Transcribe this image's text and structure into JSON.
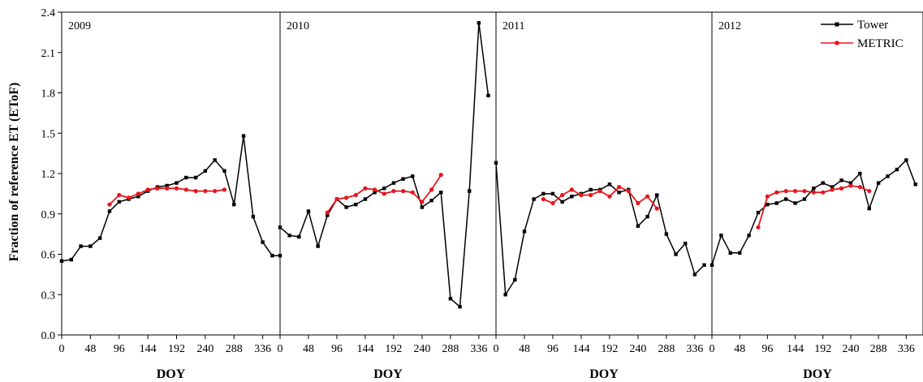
{
  "chart_data": {
    "type": "line",
    "ylabel": "Fraction of reference ET (EToF)",
    "ylim": [
      0,
      2.4
    ],
    "yticks": [
      "0.0",
      "0.3",
      "0.6",
      "0.9",
      "1.2",
      "1.5",
      "1.8",
      "2.1",
      "2.4"
    ],
    "xlim": [
      0,
      365
    ],
    "xticks": [
      "0",
      "48",
      "96",
      "144",
      "192",
      "240",
      "288",
      "336"
    ],
    "legend": {
      "position": "top-right",
      "entries": [
        {
          "name": "Tower",
          "color": "#000000",
          "marker": "square"
        },
        {
          "name": "METRIC",
          "color": "#e8141c",
          "marker": "circle"
        }
      ]
    },
    "panels": [
      {
        "label": "2009",
        "xlabel": "DOY",
        "series": [
          {
            "name": "Tower",
            "color": "#000000",
            "x": [
              0,
              16,
              32,
              48,
              64,
              80,
              96,
              112,
              128,
              144,
              160,
              176,
              192,
              208,
              224,
              240,
              256,
              272,
              288,
              304,
              320,
              336,
              352,
              365
            ],
            "y": [
              0.55,
              0.56,
              0.66,
              0.66,
              0.72,
              0.92,
              0.99,
              1.01,
              1.03,
              1.07,
              1.1,
              1.11,
              1.13,
              1.17,
              1.17,
              1.22,
              1.3,
              1.22,
              0.97,
              1.48,
              0.88,
              0.69,
              0.59,
              0.59
            ]
          },
          {
            "name": "METRIC",
            "color": "#e8141c",
            "x": [
              80,
              96,
              112,
              128,
              144,
              160,
              176,
              192,
              208,
              224,
              240,
              256,
              272
            ],
            "y": [
              0.97,
              1.04,
              1.02,
              1.05,
              1.08,
              1.09,
              1.09,
              1.09,
              1.08,
              1.07,
              1.07,
              1.07,
              1.08
            ]
          }
        ]
      },
      {
        "label": "2010",
        "xlabel": "DOY",
        "series": [
          {
            "name": "Tower",
            "color": "#000000",
            "x": [
              0,
              16,
              32,
              48,
              64,
              80,
              96,
              112,
              128,
              144,
              160,
              176,
              192,
              208,
              224,
              240,
              256,
              272,
              288,
              304,
              320,
              336,
              352
            ],
            "y": [
              0.8,
              0.74,
              0.73,
              0.92,
              0.66,
              0.89,
              1.01,
              0.95,
              0.97,
              1.01,
              1.06,
              1.09,
              1.13,
              1.16,
              1.18,
              0.95,
              1.0,
              1.06,
              0.27,
              0.21,
              1.07,
              2.32,
              1.78
            ]
          },
          {
            "name": "METRIC",
            "color": "#e8141c",
            "x": [
              80,
              96,
              112,
              128,
              144,
              160,
              176,
              192,
              208,
              224,
              240,
              256,
              272
            ],
            "y": [
              0.91,
              1.01,
              1.02,
              1.04,
              1.09,
              1.08,
              1.05,
              1.07,
              1.07,
              1.06,
              0.99,
              1.08,
              1.19
            ]
          }
        ]
      },
      {
        "label": "2011",
        "xlabel": "DOY",
        "series": [
          {
            "name": "Tower",
            "color": "#000000",
            "x": [
              0,
              16,
              32,
              48,
              64,
              80,
              96,
              112,
              128,
              144,
              160,
              176,
              192,
              208,
              224,
              240,
              256,
              272,
              288,
              304,
              320,
              336,
              352
            ],
            "y": [
              1.28,
              0.3,
              0.41,
              0.77,
              1.01,
              1.05,
              1.05,
              0.99,
              1.03,
              1.05,
              1.08,
              1.08,
              1.12,
              1.06,
              1.08,
              0.81,
              0.88,
              1.04,
              0.75,
              0.6,
              0.68,
              0.45,
              0.52
            ]
          },
          {
            "name": "METRIC",
            "color": "#e8141c",
            "x": [
              80,
              96,
              112,
              128,
              144,
              160,
              176,
              192,
              208,
              224,
              240,
              256,
              272
            ],
            "y": [
              1.01,
              0.98,
              1.04,
              1.08,
              1.04,
              1.04,
              1.07,
              1.03,
              1.1,
              1.07,
              0.98,
              1.03,
              0.94
            ]
          }
        ]
      },
      {
        "label": "2012",
        "xlabel": "DOY",
        "series": [
          {
            "name": "Tower",
            "color": "#000000",
            "x": [
              0,
              16,
              32,
              48,
              64,
              80,
              96,
              112,
              128,
              144,
              160,
              176,
              192,
              208,
              224,
              240,
              256,
              272,
              288,
              304,
              320,
              336,
              352
            ],
            "y": [
              0.52,
              0.74,
              0.61,
              0.61,
              0.74,
              0.91,
              0.97,
              0.98,
              1.01,
              0.98,
              1.01,
              1.09,
              1.13,
              1.1,
              1.15,
              1.13,
              1.2,
              0.94,
              1.13,
              1.18,
              1.23,
              1.3,
              1.12
            ]
          },
          {
            "name": "METRIC",
            "color": "#e8141c",
            "x": [
              80,
              96,
              112,
              128,
              144,
              160,
              176,
              192,
              208,
              224,
              240,
              256,
              272
            ],
            "y": [
              0.8,
              1.03,
              1.06,
              1.07,
              1.07,
              1.07,
              1.06,
              1.06,
              1.08,
              1.09,
              1.11,
              1.1,
              1.07
            ]
          }
        ]
      }
    ]
  }
}
